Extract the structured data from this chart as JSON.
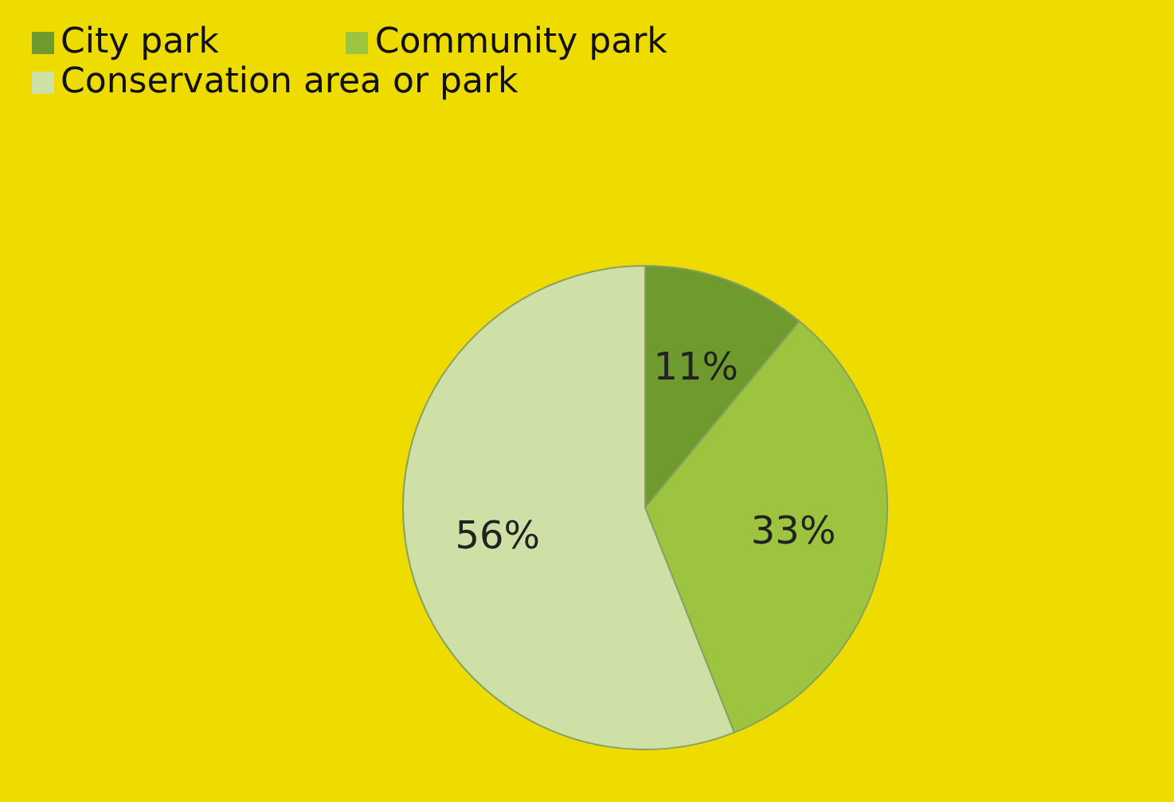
{
  "chart_data": {
    "type": "pie",
    "categories": [
      "City park",
      "Community park",
      "Conservation area or park"
    ],
    "values": [
      11,
      33,
      56
    ],
    "colors": [
      "#6f9a2e",
      "#9cc43f",
      "#cfe0a6"
    ],
    "value_labels": [
      "11%",
      "33%",
      "56%"
    ],
    "legend": "top left"
  }
}
